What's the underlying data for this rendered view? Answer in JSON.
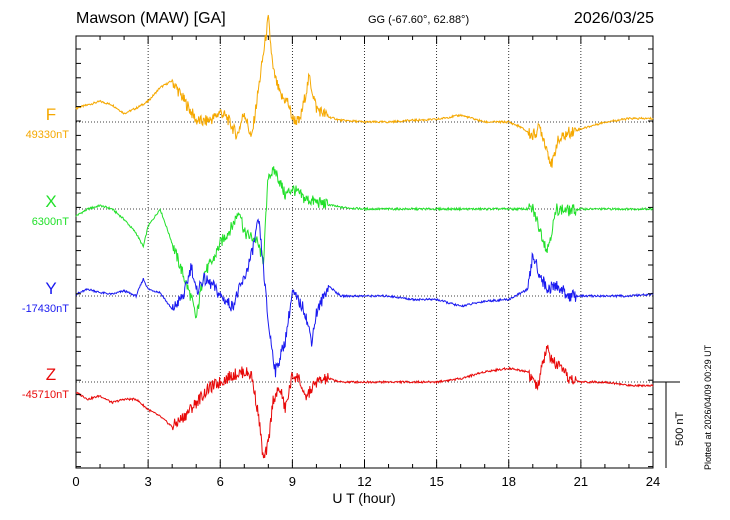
{
  "header": {
    "station": "Mawson (MAW)  [GA]",
    "coords": "GG (-67.60°,  62.88°)",
    "date": "2026/03/25"
  },
  "plot_note": "Plotted at 2026/04/09 00:29 UT",
  "chart_data": {
    "type": "line",
    "xlabel": "U T (hour)",
    "xlim": [
      0,
      24
    ],
    "x_ticks": [
      0,
      3,
      6,
      9,
      12,
      15,
      18,
      21,
      24
    ],
    "x_tick_labels": [
      "0",
      "3",
      "6",
      "9",
      "12",
      "15",
      "18",
      "21",
      "24"
    ],
    "scale_bar": {
      "label": "500 nT",
      "value_nT": 500
    },
    "grid": true,
    "series": [
      {
        "name": "F",
        "baseline_label": "49330nT",
        "baseline_nT": 49330,
        "color": "#f5a800",
        "x": [
          0,
          0.5,
          1,
          1.5,
          2,
          2.5,
          3,
          3.5,
          4,
          4.3,
          4.7,
          5,
          5.3,
          5.7,
          6,
          6.3,
          6.7,
          7,
          7.3,
          7.6,
          7.8,
          8.0,
          8.2,
          8.5,
          8.8,
          9.0,
          9.3,
          9.7,
          10,
          10.5,
          11,
          12,
          13,
          14,
          15,
          16,
          17,
          18,
          18.5,
          19,
          19.3,
          19.6,
          19.8,
          20,
          20.5,
          21,
          22,
          23,
          24
        ],
        "y": [
          80,
          100,
          120,
          100,
          50,
          80,
          120,
          200,
          240,
          170,
          80,
          10,
          0,
          20,
          60,
          20,
          -80,
          60,
          -100,
          200,
          400,
          600,
          300,
          150,
          120,
          20,
          0,
          260,
          80,
          30,
          10,
          0,
          0,
          10,
          15,
          40,
          0,
          0,
          -30,
          -80,
          -30,
          -160,
          -260,
          -120,
          -60,
          -40,
          0,
          20,
          20
        ]
      },
      {
        "name": "X",
        "baseline_label": "6300nT",
        "baseline_nT": 6300,
        "color": "#22e02a",
        "x": [
          0,
          0.5,
          1,
          1.5,
          2,
          2.5,
          2.8,
          3,
          3.5,
          4,
          4.5,
          4.8,
          5,
          5.3,
          5.7,
          6,
          6.5,
          6.8,
          7,
          7.5,
          7.8,
          8.0,
          8.3,
          8.7,
          9.0,
          9.5,
          10,
          11,
          12,
          14,
          16,
          18,
          19,
          19.3,
          19.6,
          19.8,
          20,
          20.5,
          21,
          22,
          23,
          24
        ],
        "y": [
          -40,
          0,
          20,
          0,
          -60,
          -140,
          -220,
          -100,
          0,
          -200,
          -400,
          -520,
          -640,
          -380,
          -300,
          -200,
          -100,
          0,
          -140,
          -180,
          -300,
          200,
          220,
          80,
          120,
          60,
          40,
          10,
          0,
          0,
          0,
          0,
          0,
          -120,
          -240,
          -120,
          0,
          -10,
          0,
          0,
          0,
          0
        ]
      },
      {
        "name": "Y",
        "baseline_label": "-17430nT",
        "baseline_nT": -17430,
        "color": "#1a1af0",
        "x": [
          0,
          0.5,
          1,
          1.5,
          2,
          2.5,
          2.8,
          3,
          3.5,
          4,
          4.5,
          4.8,
          5,
          5.3,
          5.7,
          6,
          6.5,
          6.8,
          7,
          7.3,
          7.6,
          7.8,
          8,
          8.3,
          8.7,
          9,
          9.5,
          9.8,
          10,
          10.5,
          11,
          12,
          13,
          14,
          15,
          16,
          17,
          18,
          18.8,
          19,
          19.3,
          19.6,
          20,
          20.5,
          21,
          22,
          23,
          24
        ],
        "y": [
          10,
          40,
          20,
          10,
          30,
          0,
          100,
          40,
          20,
          -80,
          10,
          180,
          20,
          100,
          60,
          0,
          -60,
          40,
          100,
          240,
          440,
          160,
          -160,
          -440,
          -260,
          20,
          -80,
          -260,
          -100,
          60,
          0,
          0,
          0,
          -20,
          -20,
          -60,
          -30,
          -20,
          40,
          240,
          120,
          40,
          60,
          0,
          0,
          0,
          0,
          10
        ]
      },
      {
        "name": "Z",
        "baseline_label": "-45710nT",
        "baseline_nT": -45710,
        "color": "#e80a0a",
        "x": [
          0,
          0.5,
          1,
          1.5,
          2,
          2.5,
          3,
          3.5,
          4,
          4.5,
          5,
          5.5,
          6,
          6.5,
          7,
          7.3,
          7.6,
          7.8,
          8.0,
          8.2,
          8.5,
          8.7,
          9.0,
          9.3,
          9.5,
          9.7,
          10,
          10.5,
          11,
          12,
          13,
          14,
          15,
          16,
          17,
          18,
          18.8,
          19.2,
          19.4,
          19.6,
          19.8,
          20,
          20.5,
          21,
          22,
          23,
          24
        ],
        "y": [
          -60,
          -100,
          -80,
          -120,
          -100,
          -100,
          -160,
          -200,
          -260,
          -200,
          -120,
          -40,
          0,
          40,
          60,
          40,
          -200,
          -460,
          -360,
          -100,
          -40,
          -160,
          40,
          20,
          -100,
          -60,
          0,
          20,
          0,
          0,
          0,
          0,
          0,
          20,
          60,
          80,
          60,
          -40,
          100,
          200,
          120,
          100,
          20,
          0,
          0,
          -20,
          -20
        ]
      }
    ]
  }
}
